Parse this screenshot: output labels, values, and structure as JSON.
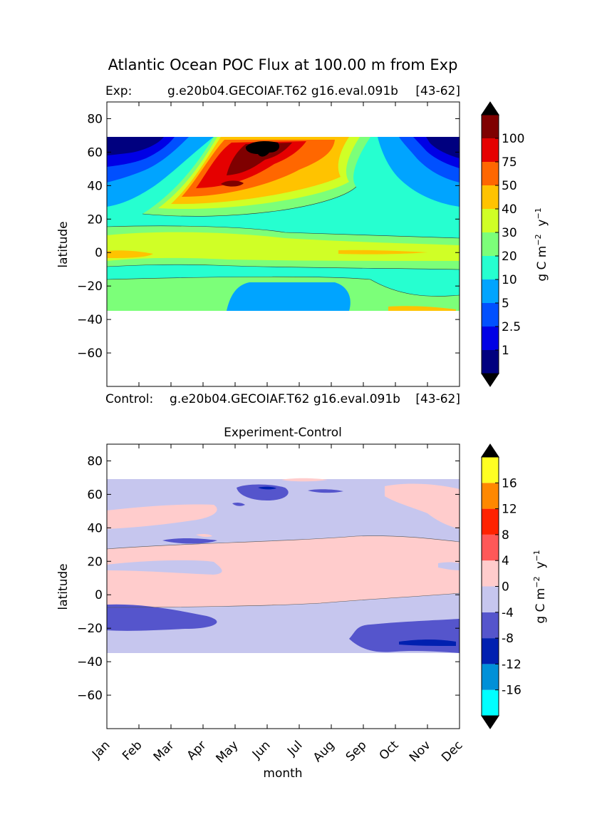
{
  "figure": {
    "title": "Atlantic Ocean POC Flux at 100.00 m from Exp"
  },
  "chart_data": [
    {
      "type": "heatmap",
      "name": "experiment",
      "left_title": "Exp:",
      "center_title": "g.e20b04.GECOIAF.T62 g16.eval.091b",
      "right_title": "[43-62]",
      "ylabel": "latitude",
      "xlabel": "",
      "ylim": [
        -80,
        90
      ],
      "xlim": [
        0,
        11
      ],
      "yticks": [
        80,
        60,
        40,
        20,
        0,
        -20,
        -40,
        -60
      ],
      "colorbar": {
        "label_parts": {
          "main": "g C m",
          "sup1": "−2",
          "mid": "  y",
          "sup2": "−1"
        },
        "tick_labels": [
          "1",
          "2.5",
          "5",
          "10",
          "20",
          "30",
          "40",
          "50",
          "75",
          "100"
        ],
        "colors": [
          "#00007f",
          "#0000e5",
          "#0050ff",
          "#00a4ff",
          "#26ffd0",
          "#7cff79",
          "#d0ff26",
          "#ffc300",
          "#ff6700",
          "#e50000",
          "#7f0000"
        ],
        "under_color": "#000000",
        "over_color": "#000000"
      },
      "grid": false
    },
    {
      "type": "heatmap",
      "name": "difference",
      "left_title": "Control:",
      "center_title": "g.e20b04.GECOIAF.T62 g16.eval.091b",
      "right_title": "[43-62]",
      "title": "Experiment-Control",
      "ylabel": "latitude",
      "xlabel": "month",
      "ylim": [
        -80,
        90
      ],
      "xlim": [
        0,
        11
      ],
      "yticks": [
        80,
        60,
        40,
        20,
        0,
        -20,
        -40,
        -60
      ],
      "xtick_labels": [
        "Jan",
        "Feb",
        "Mar",
        "Apr",
        "May",
        "Jun",
        "Jul",
        "Aug",
        "Sep",
        "Oct",
        "Nov",
        "Dec"
      ],
      "colorbar": {
        "label_parts": {
          "main": "g C m",
          "sup1": "−2",
          "mid": "  y",
          "sup2": "−1"
        },
        "tick_labels": [
          "-16",
          "-12",
          "-8",
          "-4",
          "0",
          "4",
          "8",
          "12",
          "16"
        ],
        "colors": [
          "#00ffff",
          "#0090d8",
          "#0020b0",
          "#5555cc",
          "#c6c6ee",
          "#ffcccc",
          "#ff5858",
          "#ff2200",
          "#ff8800",
          "#ffff22"
        ],
        "under_color": "#000000",
        "over_color": "#000000"
      },
      "grid": false
    }
  ]
}
